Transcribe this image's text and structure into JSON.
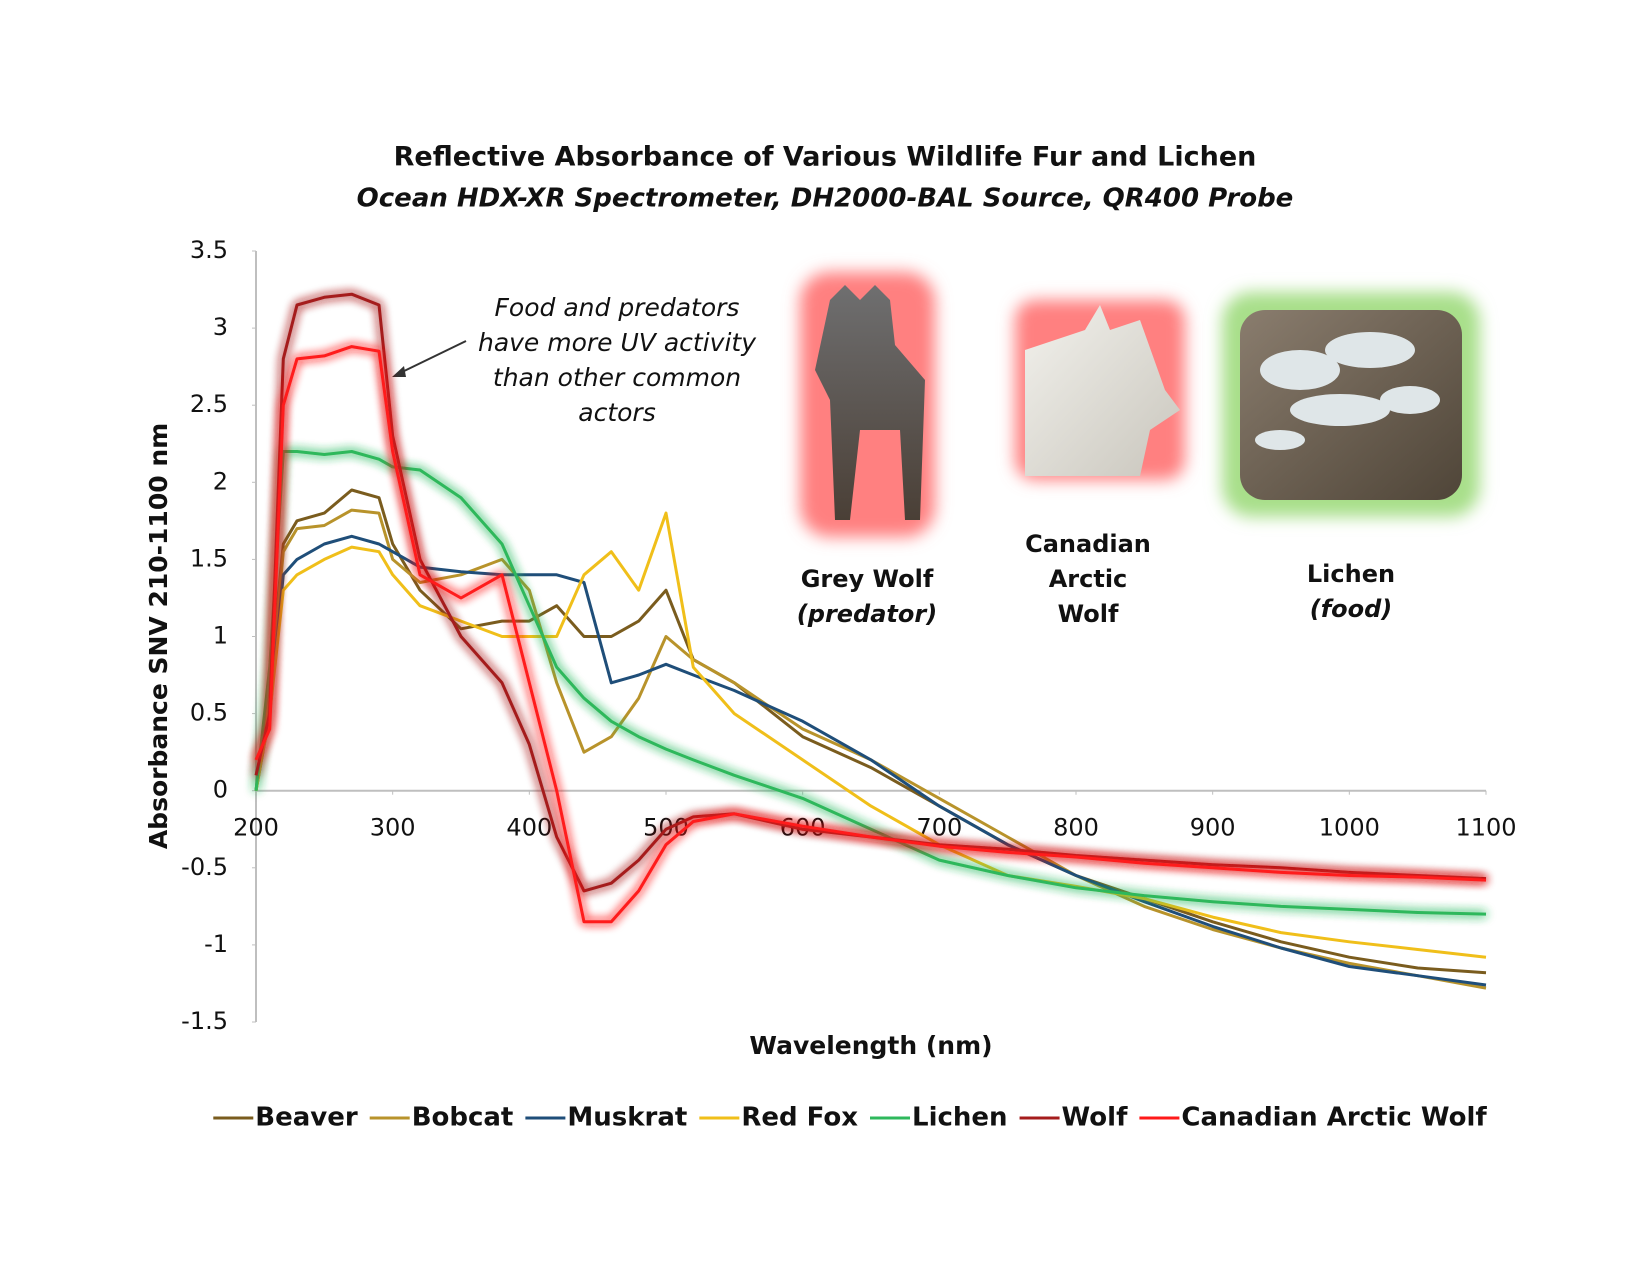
{
  "chart_data": {
    "type": "line",
    "title": "Reflective Absorbance of Various Wildlife Fur and Lichen",
    "subtitle": "Ocean HDX-XR Spectrometer, DH2000-BAL Source, QR400 Probe",
    "x_label": "Wavelength (nm)",
    "y_label": "Absorbance SNV 210-1100 nm",
    "x": [
      200,
      210,
      220,
      230,
      250,
      270,
      290,
      300,
      320,
      350,
      380,
      400,
      420,
      440,
      460,
      480,
      500,
      520,
      550,
      600,
      650,
      700,
      750,
      800,
      850,
      900,
      950,
      1000,
      1050,
      1100
    ],
    "xlim": [
      200,
      1100
    ],
    "xticks": [
      200,
      300,
      400,
      500,
      600,
      700,
      800,
      900,
      1000,
      1100
    ],
    "ylim": [
      -1.5,
      3.5
    ],
    "yticks": [
      -1.5,
      -1,
      -0.5,
      0,
      0.5,
      1,
      1.5,
      2,
      2.5,
      3,
      3.5
    ],
    "grid": false,
    "legend": "bottom",
    "series": [
      {
        "name": "Beaver",
        "color": "#7a5c1e",
        "highlight": false,
        "values": [
          0,
          0.7,
          1.6,
          1.75,
          1.8,
          1.95,
          1.9,
          1.6,
          1.3,
          1.05,
          1.1,
          1.1,
          1.2,
          1.0,
          1.0,
          1.1,
          1.3,
          0.85,
          0.7,
          0.35,
          0.15,
          -0.1,
          -0.35,
          -0.55,
          -0.7,
          -0.85,
          -0.98,
          -1.08,
          -1.15,
          -1.18
        ]
      },
      {
        "name": "Bobcat",
        "color": "#b8932b",
        "highlight": false,
        "values": [
          0,
          0.6,
          1.55,
          1.7,
          1.72,
          1.82,
          1.8,
          1.5,
          1.35,
          1.4,
          1.5,
          1.3,
          0.7,
          0.25,
          0.35,
          0.6,
          1.0,
          0.85,
          0.7,
          0.4,
          0.2,
          -0.05,
          -0.3,
          -0.55,
          -0.75,
          -0.9,
          -1.02,
          -1.12,
          -1.2,
          -1.28
        ]
      },
      {
        "name": "Muskrat",
        "color": "#1f4e79",
        "highlight": false,
        "values": [
          0,
          0.5,
          1.4,
          1.5,
          1.6,
          1.65,
          1.6,
          1.55,
          1.45,
          1.42,
          1.4,
          1.4,
          1.4,
          1.35,
          0.7,
          0.75,
          0.82,
          0.75,
          0.65,
          0.45,
          0.2,
          -0.1,
          -0.35,
          -0.55,
          -0.72,
          -0.88,
          -1.02,
          -1.14,
          -1.2,
          -1.26
        ]
      },
      {
        "name": "Red Fox",
        "color": "#f0bf1a",
        "highlight": false,
        "values": [
          0,
          0.5,
          1.3,
          1.4,
          1.5,
          1.58,
          1.55,
          1.4,
          1.2,
          1.1,
          1.0,
          1.0,
          1.0,
          1.4,
          1.55,
          1.3,
          1.8,
          0.8,
          0.5,
          0.2,
          -0.1,
          -0.35,
          -0.55,
          -0.62,
          -0.7,
          -0.82,
          -0.92,
          -0.98,
          -1.03,
          -1.08
        ]
      },
      {
        "name": "Lichen",
        "color": "#2eb85c",
        "highlight": true,
        "values": [
          0,
          0.8,
          2.2,
          2.2,
          2.18,
          2.2,
          2.15,
          2.1,
          2.08,
          1.9,
          1.6,
          1.2,
          0.8,
          0.6,
          0.45,
          0.35,
          0.27,
          0.2,
          0.1,
          -0.05,
          -0.25,
          -0.45,
          -0.55,
          -0.63,
          -0.68,
          -0.72,
          -0.75,
          -0.77,
          -0.79,
          -0.8
        ]
      },
      {
        "name": "Wolf",
        "color": "#a51c1c",
        "highlight": true,
        "values": [
          0.1,
          0.5,
          2.8,
          3.15,
          3.2,
          3.22,
          3.15,
          2.3,
          1.5,
          1.0,
          0.7,
          0.3,
          -0.3,
          -0.65,
          -0.6,
          -0.45,
          -0.25,
          -0.17,
          -0.15,
          -0.25,
          -0.3,
          -0.35,
          -0.38,
          -0.42,
          -0.45,
          -0.48,
          -0.5,
          -0.53,
          -0.55,
          -0.57
        ]
      },
      {
        "name": "Canadian Arctic Wolf",
        "color": "#ff1a1a",
        "highlight": true,
        "values": [
          0.2,
          0.4,
          2.5,
          2.8,
          2.82,
          2.88,
          2.85,
          2.2,
          1.4,
          1.25,
          1.4,
          0.7,
          0.0,
          -0.85,
          -0.85,
          -0.65,
          -0.35,
          -0.2,
          -0.15,
          -0.23,
          -0.3,
          -0.36,
          -0.4,
          -0.43,
          -0.47,
          -0.5,
          -0.53,
          -0.55,
          -0.56,
          -0.58
        ]
      }
    ],
    "annotation": [
      "Food and predators",
      "have more UV activity",
      "than other common",
      "actors"
    ],
    "picture_labels": [
      {
        "lines": [
          "Grey Wolf",
          "(predator)"
        ],
        "color": "#b22222"
      },
      {
        "lines": [
          "Canadian",
          "Arctic",
          "Wolf"
        ],
        "color": "#b22222"
      },
      {
        "lines": [
          "Lichen",
          "(food)"
        ],
        "color": "#6a9a3a"
      }
    ]
  }
}
